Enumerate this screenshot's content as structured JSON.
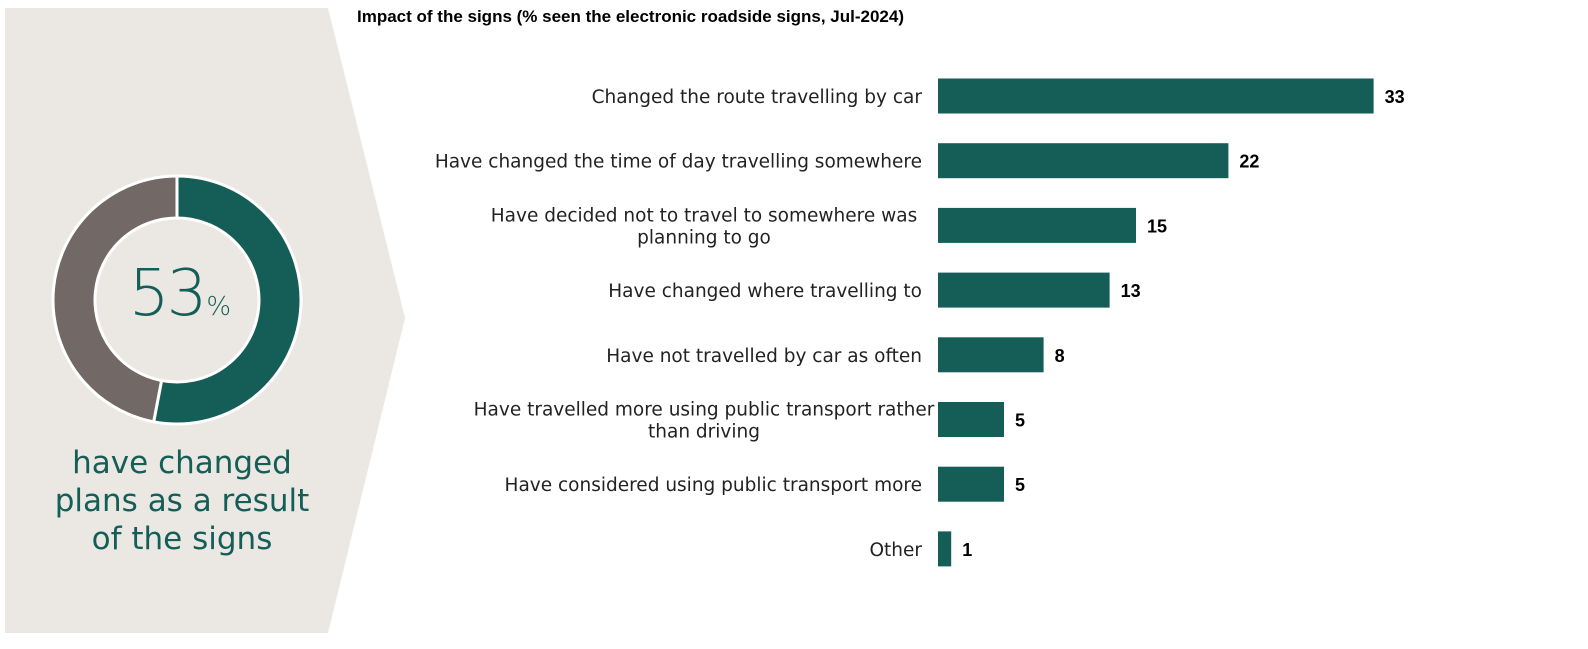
{
  "summary": {
    "value": "53",
    "unit": "%",
    "fraction": 0.53,
    "caption_lines": [
      "have changed",
      "plans as a result",
      "of the signs"
    ]
  },
  "colors": {
    "accent": "#155e57",
    "donut_remainder": "#726866",
    "panel_bg": "#ebe8e3"
  },
  "chart_data": {
    "type": "bar",
    "orientation": "horizontal",
    "title": "Impact of the signs (% seen the electronic roadside signs, Jul-2024)",
    "categories": [
      [
        "Changed the route travelling by car"
      ],
      [
        "Have changed the time of day travelling somewhere"
      ],
      [
        "Have decided not to travel to somewhere was",
        "planning to go"
      ],
      [
        "Have changed where travelling to"
      ],
      [
        "Have not travelled by car as often"
      ],
      [
        "Have travelled more using public transport rather",
        "than driving"
      ],
      [
        "Have considered using public transport more"
      ],
      [
        "Other"
      ]
    ],
    "values": [
      33,
      22,
      15,
      13,
      8,
      5,
      5,
      1
    ],
    "xlim": [
      0,
      33
    ],
    "grid": false,
    "legend": "none"
  }
}
